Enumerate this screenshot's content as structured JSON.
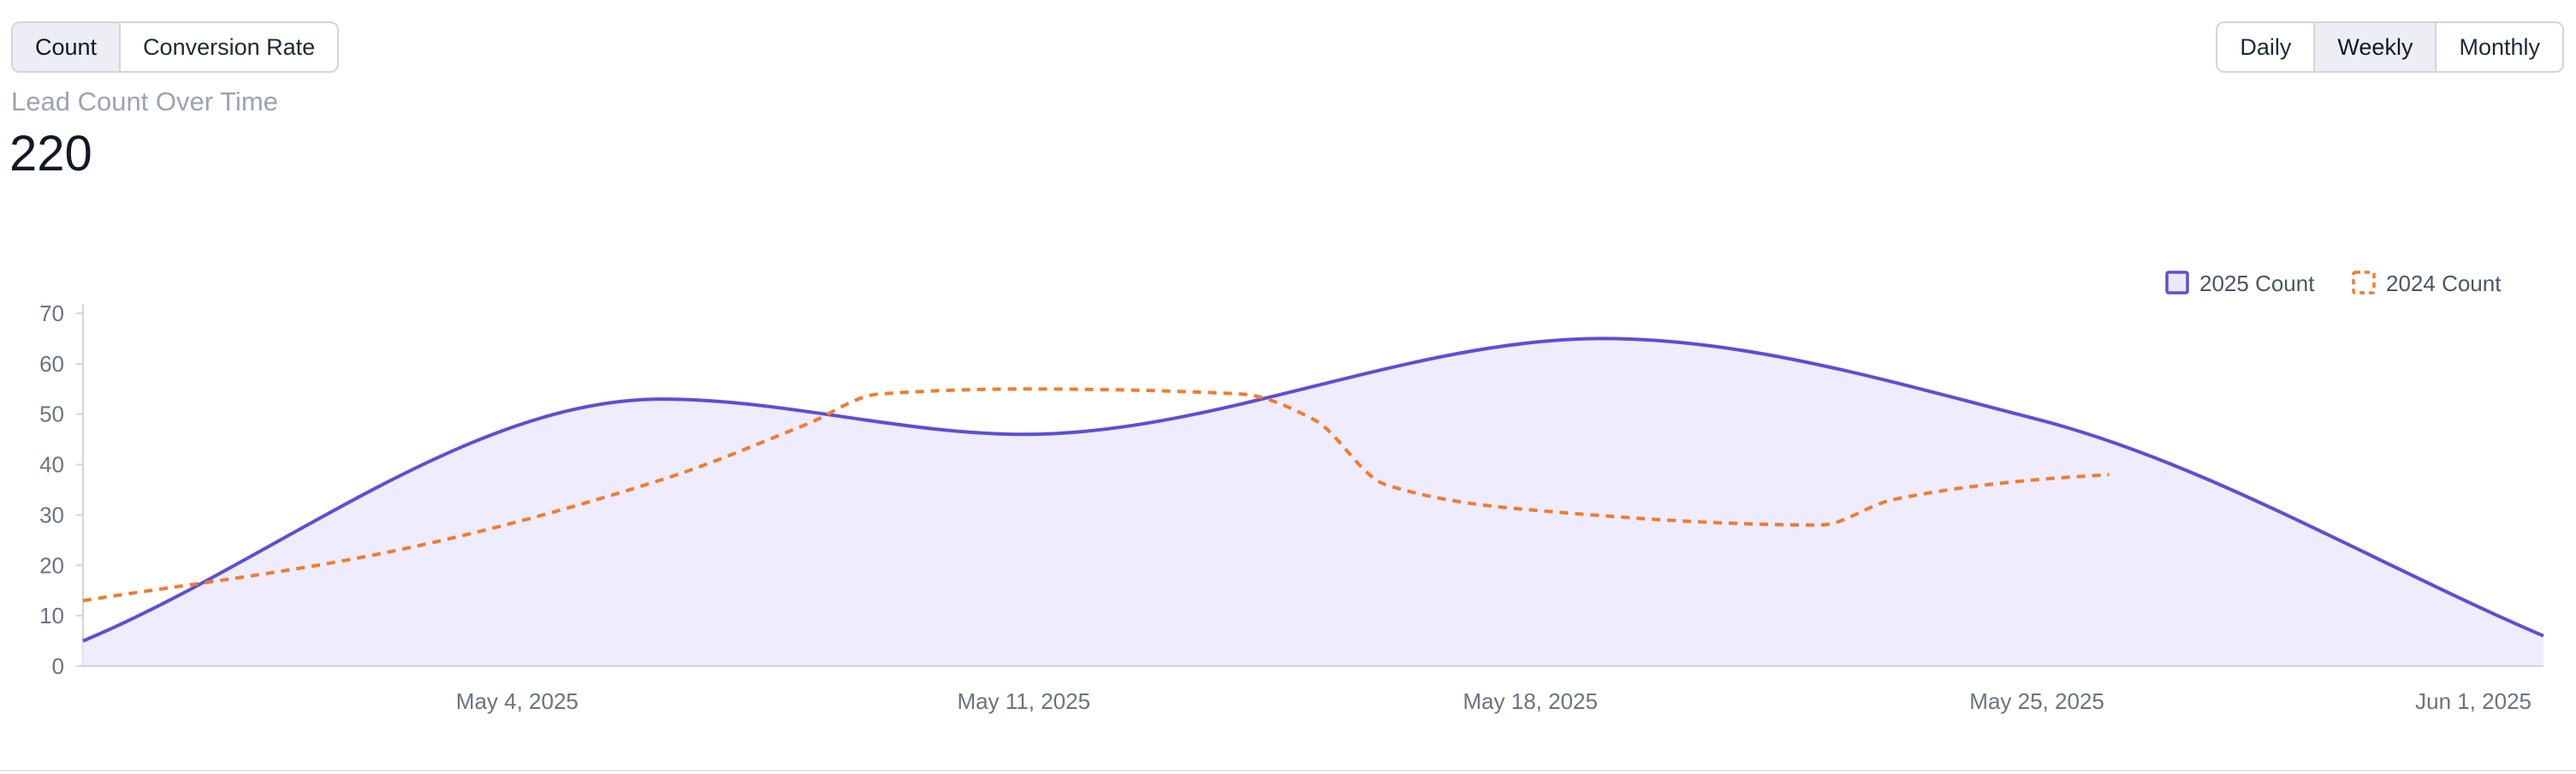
{
  "toolbar": {
    "metric_tabs": [
      {
        "label": "Count",
        "active": true
      },
      {
        "label": "Conversion Rate",
        "active": false
      }
    ],
    "period_tabs": [
      {
        "label": "Daily",
        "active": false
      },
      {
        "label": "Weekly",
        "active": true
      },
      {
        "label": "Monthly",
        "active": false
      }
    ]
  },
  "summary": {
    "title": "Lead Count Over Time",
    "value": "220"
  },
  "colors": {
    "series_2025": "#5b4fd6",
    "series_2024": "#f27b2c",
    "area_fill": "#efecfd",
    "axis": "#d1d5db",
    "tick_text": "#6b7280"
  },
  "chart_data": {
    "type": "line",
    "title": "Lead Count Over Time",
    "xlabel": "",
    "ylabel": "",
    "ylim": [
      0,
      70
    ],
    "y_ticks": [
      0,
      10,
      20,
      30,
      40,
      50,
      60,
      70
    ],
    "x_range": [
      "2025-04-28",
      "2025-06-01"
    ],
    "x_ticks": [
      {
        "date": "2025-05-04",
        "label": "May 4, 2025"
      },
      {
        "date": "2025-05-11",
        "label": "May 11, 2025"
      },
      {
        "date": "2025-05-18",
        "label": "May 18, 2025"
      },
      {
        "date": "2025-05-25",
        "label": "May 25, 2025"
      },
      {
        "date": "2025-06-01",
        "label": "Jun 1, 2025"
      }
    ],
    "grid": false,
    "legend_position": "top-right",
    "series": [
      {
        "name": "2025 Count",
        "style": "solid-area",
        "points": [
          {
            "x": "2025-04-28",
            "y": 5
          },
          {
            "x": "2025-05-06",
            "y": 53
          },
          {
            "x": "2025-05-11",
            "y": 46
          },
          {
            "x": "2025-05-19",
            "y": 65
          },
          {
            "x": "2025-05-25",
            "y": 49
          },
          {
            "x": "2025-06-01",
            "y": 6
          }
        ]
      },
      {
        "name": "2024 Count",
        "style": "dashed",
        "points": [
          {
            "x": "2025-04-28",
            "y": 13
          },
          {
            "x": "2025-05-02",
            "y": 22
          },
          {
            "x": "2025-05-06",
            "y": 37
          },
          {
            "x": "2025-05-08",
            "y": 48
          },
          {
            "x": "2025-05-09",
            "y": 54
          },
          {
            "x": "2025-05-11",
            "y": 55
          },
          {
            "x": "2025-05-14",
            "y": 54
          },
          {
            "x": "2025-05-15",
            "y": 49
          },
          {
            "x": "2025-05-16",
            "y": 36
          },
          {
            "x": "2025-05-18",
            "y": 31
          },
          {
            "x": "2025-05-22",
            "y": 28
          },
          {
            "x": "2025-05-23",
            "y": 33
          },
          {
            "x": "2025-05-25",
            "y": 37
          },
          {
            "x": "2025-05-26",
            "y": 38
          }
        ]
      }
    ]
  }
}
